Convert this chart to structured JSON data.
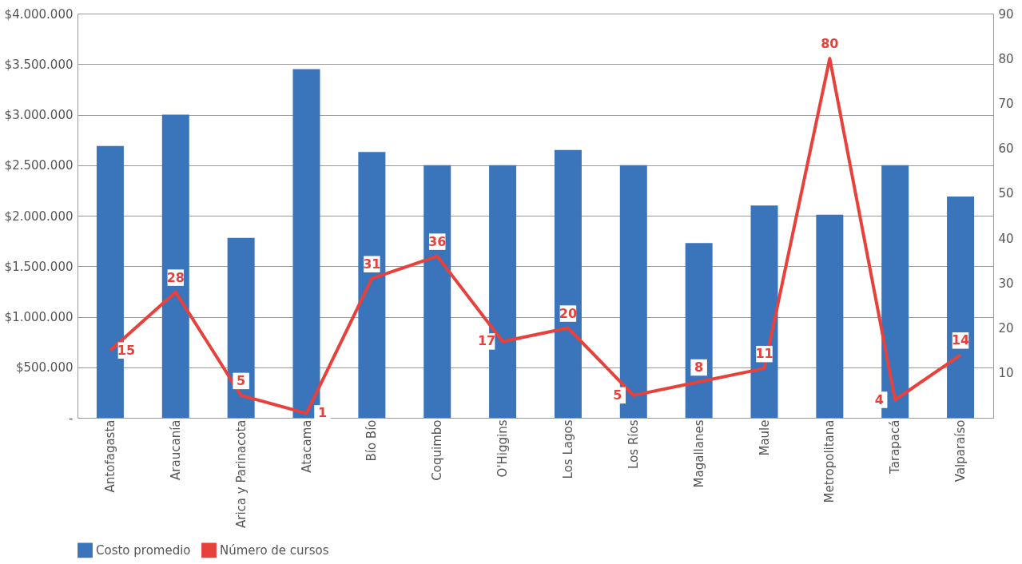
{
  "chart_data": {
    "type": "bar",
    "categories": [
      "Antofagasta",
      "Araucanía",
      "Arica y Parinacota",
      "Atacama",
      "Bío Bío",
      "Coquimbo",
      "O'Higgins",
      "Los Lagos",
      "Los Ríos",
      "Magallanes",
      "Maule",
      "Metropolitana",
      "Tarapacá",
      "Valparaíso"
    ],
    "series": [
      {
        "name": "Costo promedio",
        "color": "#3a75bb",
        "values": [
          2690000,
          3000000,
          1780000,
          3450000,
          2630000,
          2500000,
          2500000,
          2650000,
          2500000,
          1730000,
          2100000,
          2010000,
          2500000,
          2190000
        ]
      },
      {
        "name": "Número de cursos",
        "color": "#e8413c",
        "type": "line",
        "axis": "y2",
        "data_labels": true,
        "values": [
          15,
          28,
          5,
          1,
          31,
          36,
          17,
          20,
          5,
          8,
          11,
          80,
          4,
          14
        ]
      }
    ],
    "ylim": [
      0,
      4000000
    ],
    "yticks": [
      {
        "value": 0,
        "label": "-"
      },
      {
        "value": 500000,
        "label": "$500.000"
      },
      {
        "value": 1000000,
        "label": "$1.000.000"
      },
      {
        "value": 1500000,
        "label": "$1.500.000"
      },
      {
        "value": 2000000,
        "label": "$2.000.000"
      },
      {
        "value": 2500000,
        "label": "$2.500.000"
      },
      {
        "value": 3000000,
        "label": "$3.000.000"
      },
      {
        "value": 3500000,
        "label": "$3.500.000"
      },
      {
        "value": 4000000,
        "label": "$4.000.000"
      }
    ],
    "y2lim": [
      0,
      90
    ],
    "y2ticks": [
      10,
      20,
      30,
      40,
      50,
      60,
      70,
      80,
      90
    ],
    "grid": "y",
    "legend": "bottom"
  }
}
